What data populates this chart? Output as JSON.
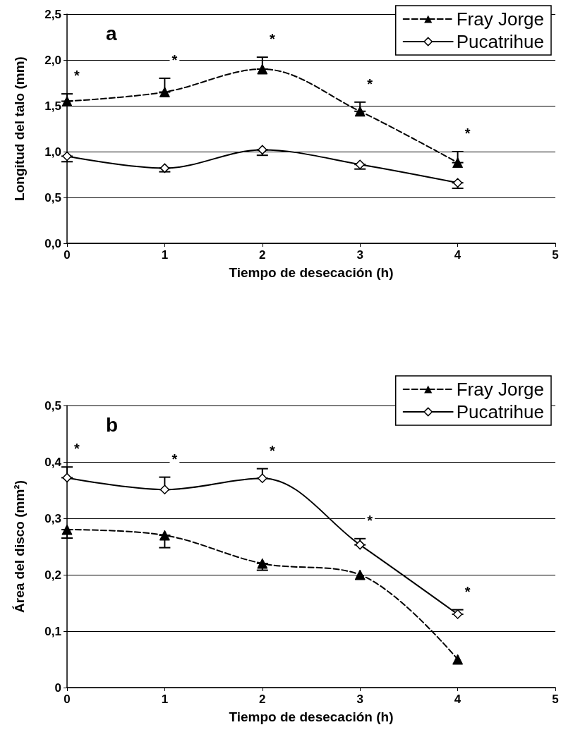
{
  "chart_data": [
    {
      "type": "line",
      "title": "a",
      "xlabel": "Tiempo de desecación (h)",
      "ylabel": "Longitud del talo (mm)",
      "xlim": [
        0,
        5
      ],
      "xticks": [
        0,
        1,
        2,
        3,
        4,
        5
      ],
      "ylim": [
        0,
        2.5
      ],
      "yticks": [
        {
          "value": 0,
          "label": "0,0"
        },
        {
          "value": 0.5,
          "label": "0,5"
        },
        {
          "value": 1,
          "label": "1,0"
        },
        {
          "value": 1.5,
          "label": "1,5"
        },
        {
          "value": 2,
          "label": "2,0"
        },
        {
          "value": 2.5,
          "label": "2,5"
        }
      ],
      "grid": "y",
      "legend": "top right",
      "series": [
        {
          "name": "Fray Jorge",
          "color": "#000000",
          "marker": "triangle",
          "line_style": "dashed",
          "x": [
            0,
            1,
            2,
            3,
            4
          ],
          "values": [
            1.55,
            1.65,
            1.9,
            1.44,
            0.88
          ],
          "errors": [
            [
              1.55,
              1.63
            ],
            [
              1.65,
              1.8
            ],
            [
              1.9,
              2.03
            ],
            [
              1.44,
              1.54
            ],
            [
              0.88,
              1.0
            ]
          ]
        },
        {
          "name": "Pucatrihue",
          "color": "#000000",
          "marker": "diamond",
          "line_style": "solid",
          "x": [
            0,
            1,
            2,
            3,
            4
          ],
          "values": [
            0.95,
            0.82,
            1.02,
            0.86,
            0.66
          ],
          "errors": [
            [
              0.89,
              0.95
            ],
            [
              0.78,
              0.82
            ],
            [
              0.96,
              1.02
            ],
            [
              0.81,
              0.86
            ],
            [
              0.6,
              0.66
            ]
          ]
        }
      ],
      "annotations": [
        "*",
        "*",
        "*",
        "*",
        "*"
      ]
    },
    {
      "type": "line",
      "title": "b",
      "xlabel": "Tiempo de desecación (h)",
      "ylabel": "Área del disco (mm²)",
      "xlim": [
        0,
        5
      ],
      "xticks": [
        0,
        1,
        2,
        3,
        4,
        5
      ],
      "ylim": [
        0,
        0.5
      ],
      "yticks": [
        0,
        {
          "value": 0.1,
          "label": "0,1"
        },
        {
          "value": 0.2,
          "label": "0,2"
        },
        {
          "value": 0.3,
          "label": "0,3"
        },
        {
          "value": 0.4,
          "label": "0,4"
        },
        {
          "value": 0.5,
          "label": "0,5"
        }
      ],
      "grid": "y",
      "legend": "top right",
      "series": [
        {
          "name": "Fray Jorge",
          "color": "#000000",
          "marker": "triangle",
          "line_style": "dashed",
          "x": [
            0,
            1,
            2,
            3,
            4
          ],
          "values": [
            0.28,
            0.27,
            0.22,
            0.2,
            0.05
          ],
          "errors": [
            [
              0.265,
              0.28
            ],
            [
              0.248,
              0.27
            ],
            [
              0.208,
              0.22
            ],
            null,
            null
          ]
        },
        {
          "name": "Pucatrihue",
          "color": "#000000",
          "marker": "diamond",
          "line_style": "solid",
          "x": [
            0,
            1,
            2,
            3,
            4
          ],
          "values": [
            0.372,
            0.351,
            0.371,
            0.253,
            0.13
          ],
          "errors": [
            [
              0.372,
              0.391
            ],
            [
              0.351,
              0.373
            ],
            [
              0.371,
              0.388
            ],
            [
              0.253,
              0.264
            ],
            [
              0.13,
              0.138
            ]
          ]
        }
      ],
      "annotations": [
        "*",
        "*",
        "*",
        "*",
        "*"
      ]
    }
  ]
}
